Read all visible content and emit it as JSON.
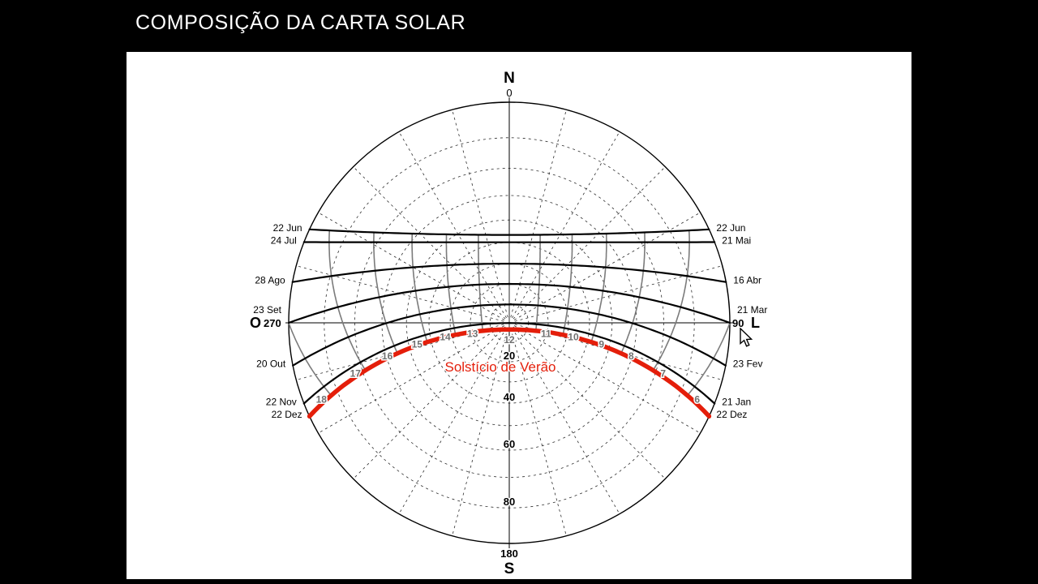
{
  "header": {
    "title": "COMPOSIÇÃO DA CARTA SOLAR"
  },
  "colors": {
    "background": "#000000",
    "panel": "#ffffff",
    "ink": "#000000",
    "grid": "#2e2e2e",
    "hour_line": "#7b7b7b",
    "hour_label": "#6f6f6f",
    "highlight": "#e41e0a"
  },
  "chart_data": {
    "type": "sun-path-diagram",
    "projection": "stereographic",
    "latitude_deg": -20,
    "compass": {
      "north": "N",
      "south": "S",
      "west": "O",
      "east": "L"
    },
    "azimuth_axis_labels": {
      "top": "0",
      "bottom": "180",
      "left": "270",
      "right": "90"
    },
    "zenith_circle_step_deg": 10,
    "zenith_axis_labels": [
      "20",
      "40",
      "60",
      "80"
    ],
    "azimuth_line_step_deg": 15,
    "hour_labels": [
      6,
      7,
      8,
      9,
      10,
      11,
      12,
      13,
      14,
      15,
      16,
      17,
      18
    ],
    "date_curves": [
      {
        "left_label": "22 Jun",
        "right_label": "22 Jun",
        "declination_deg": 23.45
      },
      {
        "left_label": "24 Jul",
        "right_label": "21 Mai",
        "declination_deg": 20.1
      },
      {
        "left_label": "28 Ago",
        "right_label": "16 Abr",
        "declination_deg": 10.0
      },
      {
        "left_label": "23 Set",
        "right_label": "21 Mar",
        "declination_deg": 0.0
      },
      {
        "left_label": "20 Out",
        "right_label": "23 Fev",
        "declination_deg": -10.5
      },
      {
        "left_label": "22 Nov",
        "right_label": "21 Jan",
        "declination_deg": -20.1
      },
      {
        "left_label": "22 Dez",
        "right_label": "22 Dez",
        "declination_deg": -23.45,
        "highlight": true
      }
    ],
    "highlight_label": "Solstício de Verão"
  }
}
